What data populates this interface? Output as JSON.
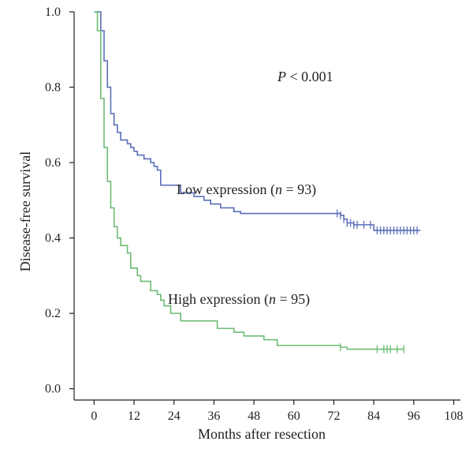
{
  "chart_data": {
    "type": "line",
    "title": "",
    "xlabel": "Months after resection",
    "ylabel": "Disease-free survival",
    "xlim": [
      -6,
      110
    ],
    "ylim": [
      -0.03,
      1.0
    ],
    "xticks": [
      0,
      12,
      24,
      36,
      48,
      60,
      72,
      84,
      96,
      108
    ],
    "yticks": [
      0.0,
      0.2,
      0.4,
      0.6,
      0.8,
      1.0
    ],
    "xtick_labels": [
      "0",
      "12",
      "24",
      "36",
      "48",
      "60",
      "72",
      "84",
      "96",
      "108"
    ],
    "ytick_labels": [
      "0.0",
      "0.2",
      "0.4",
      "0.6",
      "0.8",
      "1.0"
    ],
    "grid": false,
    "p_value": {
      "italic": "P",
      "rest": " < 0.001"
    },
    "series": [
      {
        "name": "Low expression (n = 93)",
        "label_parts": [
          "Low expression (",
          "n",
          " = 93)"
        ],
        "color": "#5b6fb8",
        "steps": [
          [
            0,
            1.0
          ],
          [
            2,
            0.95
          ],
          [
            3,
            0.87
          ],
          [
            4,
            0.8
          ],
          [
            5,
            0.73
          ],
          [
            6,
            0.7
          ],
          [
            7,
            0.68
          ],
          [
            8,
            0.66
          ],
          [
            10,
            0.65
          ],
          [
            11,
            0.64
          ],
          [
            12,
            0.63
          ],
          [
            13,
            0.62
          ],
          [
            15,
            0.61
          ],
          [
            17,
            0.6
          ],
          [
            18,
            0.59
          ],
          [
            19,
            0.58
          ],
          [
            20,
            0.54
          ],
          [
            26,
            0.52
          ],
          [
            30,
            0.51
          ],
          [
            33,
            0.5
          ],
          [
            35,
            0.49
          ],
          [
            38,
            0.48
          ],
          [
            42,
            0.47
          ],
          [
            44,
            0.465
          ],
          [
            74,
            0.46
          ],
          [
            75,
            0.45
          ],
          [
            76,
            0.44
          ],
          [
            78,
            0.435
          ],
          [
            84,
            0.42
          ],
          [
            98,
            0.42
          ]
        ],
        "censored": [
          73,
          74,
          75,
          76,
          77,
          78,
          79,
          81,
          83,
          85,
          86,
          87,
          88,
          89,
          90,
          91,
          92,
          93,
          94,
          95,
          96,
          97
        ]
      },
      {
        "name": "High expression (n = 95)",
        "label_parts": [
          "High expression (",
          "n",
          " = 95)"
        ],
        "color": "#6dbb74",
        "steps": [
          [
            0,
            1.0
          ],
          [
            1,
            0.95
          ],
          [
            2,
            0.77
          ],
          [
            3,
            0.64
          ],
          [
            4,
            0.55
          ],
          [
            5,
            0.48
          ],
          [
            6,
            0.43
          ],
          [
            7,
            0.4
          ],
          [
            8,
            0.38
          ],
          [
            10,
            0.36
          ],
          [
            11,
            0.32
          ],
          [
            13,
            0.3
          ],
          [
            14,
            0.285
          ],
          [
            17,
            0.26
          ],
          [
            19,
            0.25
          ],
          [
            20,
            0.235
          ],
          [
            21,
            0.22
          ],
          [
            23,
            0.2
          ],
          [
            26,
            0.18
          ],
          [
            34,
            0.18
          ],
          [
            37,
            0.16
          ],
          [
            42,
            0.15
          ],
          [
            45,
            0.14
          ],
          [
            51,
            0.13
          ],
          [
            55,
            0.115
          ],
          [
            74,
            0.11
          ],
          [
            76,
            0.105
          ],
          [
            93,
            0.105
          ]
        ],
        "censored": [
          74,
          85,
          87,
          88,
          89,
          91,
          93
        ]
      }
    ]
  }
}
